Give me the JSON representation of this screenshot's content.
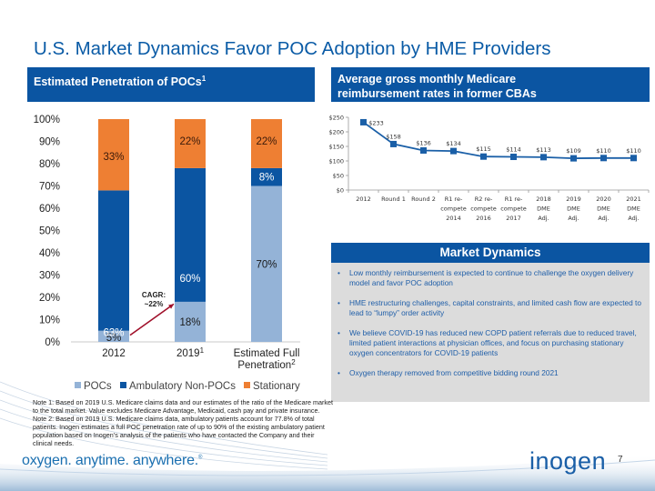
{
  "title": "U.S. Market Dynamics Favor POC Adoption by HME Providers",
  "left_panel": {
    "header": "Estimated Penetration of POCs",
    "header_sup": "1"
  },
  "right_panel": {
    "header_line1": "Average gross monthly Medicare",
    "header_line2": "reimbursement rates in former CBAs"
  },
  "colors": {
    "brand_blue": "#0b55a2",
    "pocs": "#94b3d7",
    "ambulatory": "#0b55a2",
    "stationary": "#ee7f33",
    "line": "#1a5fa7",
    "arrow": "#a0102a"
  },
  "chart_data": [
    {
      "type": "bar",
      "stacked": true,
      "title": "Estimated Penetration of POCs",
      "categories": [
        "2012",
        "2019",
        "Estimated Full Penetration"
      ],
      "category_sups": [
        "",
        "1",
        "2"
      ],
      "category_lines": [
        [
          "2012"
        ],
        [
          "2019"
        ],
        [
          "Estimated Full",
          "Penetration"
        ]
      ],
      "series": [
        {
          "name": "POCs",
          "values": [
            5,
            18,
            70
          ],
          "labels": [
            "5%",
            "18%",
            "70%"
          ]
        },
        {
          "name": "Ambulatory Non-POCs",
          "values": [
            63,
            60,
            8
          ],
          "labels": [
            "63%",
            "60%",
            "8%"
          ]
        },
        {
          "name": "Stationary",
          "values": [
            33,
            22,
            22
          ],
          "labels": [
            "33%",
            "22%",
            "22%"
          ]
        }
      ],
      "ylim": [
        0,
        100
      ],
      "yticks": [
        "0%",
        "10%",
        "20%",
        "30%",
        "40%",
        "50%",
        "60%",
        "70%",
        "80%",
        "90%",
        "100%"
      ],
      "legend": "bottom",
      "annotation": {
        "line1": "CAGR:",
        "line2": "~22%"
      }
    },
    {
      "type": "line",
      "title": "Average gross monthly Medicare reimbursement rates in former CBAs",
      "categories": [
        "2012",
        "Round 1",
        "Round 2",
        "R1 re-compete 2014",
        "R2 re-compete 2016",
        "R1 re-compete 2017",
        "2018 DME Adj.",
        "2019 DME Adj.",
        "2020 DME Adj.",
        "2021 DME Adj."
      ],
      "category_lines": [
        [
          "2012"
        ],
        [
          "Round 1"
        ],
        [
          "Round 2"
        ],
        [
          "R1 re-",
          "compete",
          "2014"
        ],
        [
          "R2 re-",
          "compete",
          "2016"
        ],
        [
          "R1 re-",
          "compete",
          "2017"
        ],
        [
          "2018",
          "DME",
          "Adj."
        ],
        [
          "2019",
          "DME",
          "Adj."
        ],
        [
          "2020",
          "DME",
          "Adj."
        ],
        [
          "2021",
          "DME",
          "Adj."
        ]
      ],
      "values": [
        233,
        158,
        136,
        134,
        115,
        114,
        113,
        109,
        110,
        110
      ],
      "labels": [
        "$233",
        "$158",
        "$136",
        "$134",
        "$115",
        "$114",
        "$113",
        "$109",
        "$110",
        "$110"
      ],
      "ylim": [
        0,
        250
      ],
      "yticks": [
        "$0",
        "$50",
        "$100",
        "$150",
        "$200",
        "$250"
      ],
      "grid": false
    }
  ],
  "market_dynamics": {
    "title": "Market Dynamics",
    "bullet": "•",
    "items": [
      "Low monthly reimbursement is expected to continue to challenge the oxygen delivery model and favor POC adoption",
      "HME restructuring challenges, capital constraints, and limited cash flow are expected to lead to “lumpy” order activity",
      "We believe COVID-19 has reduced new COPD patient referrals due to reduced travel, limited patient interactions at physician offices, and focus on purchasing stationary oxygen concentrators for COVID-19 patients",
      "Oxygen therapy removed from competitive bidding round 2021"
    ]
  },
  "notes": {
    "note1": "Note 1: Based on 2019 U.S. Medicare claims data and our estimates of the ratio of the Medicare market to the total market. Value excludes Medicare Advantage, Medicaid, cash pay and private insurance.",
    "note2": "Note 2: Based on 2019 U.S. Medicare claims data, ambulatory patients account for 77.8% of total patients. Inogen estimates a full POC penetration rate of up to 90% of the existing ambulatory patient population based on Inogen’s analysis of the patients who have contacted the Company and their clinical needs."
  },
  "footer": {
    "tagline": "oxygen. anytime. anywhere.",
    "tagline_mark": "®",
    "logo": "inogen",
    "page_number": "7"
  }
}
